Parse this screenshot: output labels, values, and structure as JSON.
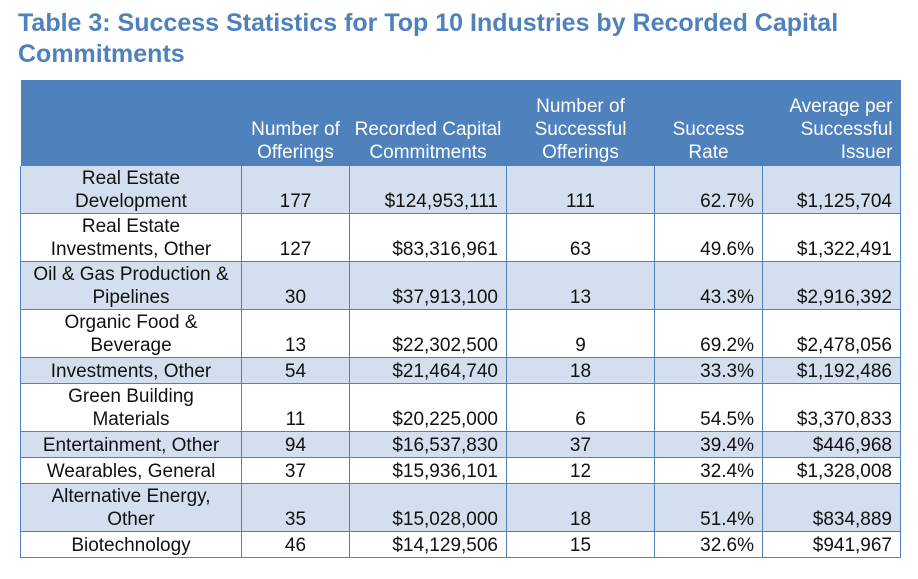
{
  "title": "Table 3: Success Statistics for Top 10 Industries by Recorded Capital Commitments",
  "headers": [
    "",
    "Number of Offerings",
    "Recorded Capital Commitments",
    "Number of Successful Offerings",
    "Success Rate",
    "Average per Successful Issuer"
  ],
  "rows": [
    {
      "industry": "Real Estate Development",
      "offerings": "177",
      "capital": "$124,953,111",
      "successful": "111",
      "rate": "62.7%",
      "average": "$1,125,704"
    },
    {
      "industry": "Real Estate Investments, Other",
      "offerings": "127",
      "capital": "$83,316,961",
      "successful": "63",
      "rate": "49.6%",
      "average": "$1,322,491"
    },
    {
      "industry": "Oil & Gas Production & Pipelines",
      "offerings": "30",
      "capital": "$37,913,100",
      "successful": "13",
      "rate": "43.3%",
      "average": "$2,916,392"
    },
    {
      "industry": "Organic Food & Beverage",
      "offerings": "13",
      "capital": "$22,302,500",
      "successful": "9",
      "rate": "69.2%",
      "average": "$2,478,056"
    },
    {
      "industry": "Investments, Other",
      "offerings": "54",
      "capital": "$21,464,740",
      "successful": "18",
      "rate": "33.3%",
      "average": "$1,192,486"
    },
    {
      "industry": "Green Building Materials",
      "offerings": "11",
      "capital": "$20,225,000",
      "successful": "6",
      "rate": "54.5%",
      "average": "$3,370,833"
    },
    {
      "industry": "Entertainment, Other",
      "offerings": "94",
      "capital": "$16,537,830",
      "successful": "37",
      "rate": "39.4%",
      "average": "$446,968"
    },
    {
      "industry": "Wearables, General",
      "offerings": "37",
      "capital": "$15,936,101",
      "successful": "12",
      "rate": "32.4%",
      "average": "$1,328,008"
    },
    {
      "industry": "Alternative Energy, Other",
      "offerings": "35",
      "capital": "$15,028,000",
      "successful": "18",
      "rate": "51.4%",
      "average": "$834,889"
    },
    {
      "industry": "Biotechnology",
      "offerings": "46",
      "capital": "$14,129,506",
      "successful": "15",
      "rate": "32.6%",
      "average": "$941,967"
    }
  ]
}
